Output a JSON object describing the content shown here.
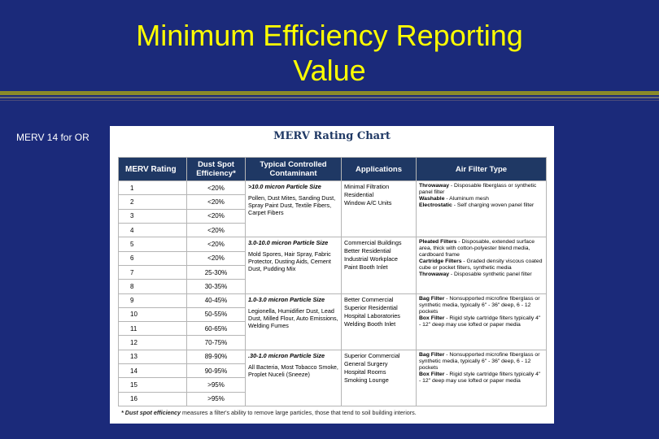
{
  "slide": {
    "title_line1": "Minimum Efficiency Reporting",
    "title_line2": "Value",
    "side_label": "MERV 14 for OR"
  },
  "colors": {
    "background": "#1b2a7a",
    "title": "#ffff00",
    "table_header": "#1f3864"
  },
  "chart": {
    "title": "MERV Rating Chart",
    "headers": {
      "rating": "MERV Rating",
      "efficiency": "Dust Spot Efficiency*",
      "contaminant": "Typical Controlled Contaminant",
      "applications": "Applications",
      "filter_type": "Air Filter Type"
    },
    "rows": [
      {
        "rating": "1",
        "efficiency": "<20%"
      },
      {
        "rating": "2",
        "efficiency": "<20%"
      },
      {
        "rating": "3",
        "efficiency": "<20%"
      },
      {
        "rating": "4",
        "efficiency": "<20%"
      },
      {
        "rating": "5",
        "efficiency": "<20%"
      },
      {
        "rating": "6",
        "efficiency": "<20%"
      },
      {
        "rating": "7",
        "efficiency": "25-30%"
      },
      {
        "rating": "8",
        "efficiency": "30-35%"
      },
      {
        "rating": "9",
        "efficiency": "40-45%"
      },
      {
        "rating": "10",
        "efficiency": "50-55%"
      },
      {
        "rating": "11",
        "efficiency": "60-65%"
      },
      {
        "rating": "12",
        "efficiency": "70-75%"
      },
      {
        "rating": "13",
        "efficiency": "89-90%"
      },
      {
        "rating": "14",
        "efficiency": "90-95%"
      },
      {
        "rating": "15",
        "efficiency": ">95%"
      },
      {
        "rating": "16",
        "efficiency": ">95%"
      }
    ],
    "groups": [
      {
        "particle_size": ">10.0 micron Particle Size",
        "contaminants": "Pollen, Dust Mites, Sanding Dust, Spray Paint Dust, Textile Fibers, Carpet Fibers",
        "applications": [
          "Minimal Filtration",
          "Residential",
          "Window A/C Units"
        ],
        "filter_types": [
          {
            "name": "Throwaway",
            "desc": " - Disposable fiberglass or synthetic panel filter"
          },
          {
            "name": "Washable",
            "desc": " - Aluminum mesh"
          },
          {
            "name": "Electrostatic",
            "desc": " - Self charging woven panel filter"
          }
        ]
      },
      {
        "particle_size": "3.0-10.0 micron Particle Size",
        "contaminants": "Mold Spores, Hair Spray, Fabric Protector, Dusting Aids, Cement Dust, Pudding Mix",
        "applications": [
          "Commercial Buildings",
          "Better Residential",
          "Industrial Workplace",
          "Paint Booth Inlet"
        ],
        "filter_types": [
          {
            "name": "Pleated Filters",
            "desc": " - Disposable, extended surface area, thick with cotton-polyester blend media, cardboard frame"
          },
          {
            "name": "Cartridge Filters",
            "desc": " - Graded density viscous coated cube or pocket filters, synthetic media"
          },
          {
            "name": "Throwaway",
            "desc": " - Disposable synthetic panel filter"
          }
        ]
      },
      {
        "particle_size": "1.0-3.0 micron Particle Size",
        "contaminants": "Legionella, Humidifier Dust, Lead Dust, Milled Flour, Auto Emissions, Welding Fumes",
        "applications": [
          "Better Commercial",
          "Superior Residential",
          "Hospital Laboratories",
          "Welding Booth Inlet"
        ],
        "filter_types": [
          {
            "name": "Bag Filter",
            "desc": " - Nonsupported microfine fiberglass or synthetic media, typically 6\" - 36\" deep, 6 - 12 pockets"
          },
          {
            "name": "Box Filter",
            "desc": " - Rigid style cartridge filters typically 4\" - 12\" deep may use lofted or paper media"
          }
        ]
      },
      {
        "particle_size": ".30-1.0 micron Particle Size",
        "contaminants": "All Bacteria, Most Tobacco Smoke, Proplet Nuceli (Sneeze)",
        "applications": [
          "Superior Commercial",
          "General Surgery",
          "Hospital Rooms",
          "Smoking Lounge"
        ],
        "filter_types": [
          {
            "name": "Bag Filter",
            "desc": " - Nonsupported microfine fiberglass or synthetic media, typically 6\" - 36\" deep, 6 - 12 pockets"
          },
          {
            "name": "Box Filter",
            "desc": " - Rigid style cartridge filters typically 4\" - 12\" deep may use lofted or paper media"
          }
        ]
      }
    ],
    "footnote_term": "* Dust spot efficiency",
    "footnote_text": " measures a filter's ability to remove large particles, those that tend to soil building interiors."
  }
}
